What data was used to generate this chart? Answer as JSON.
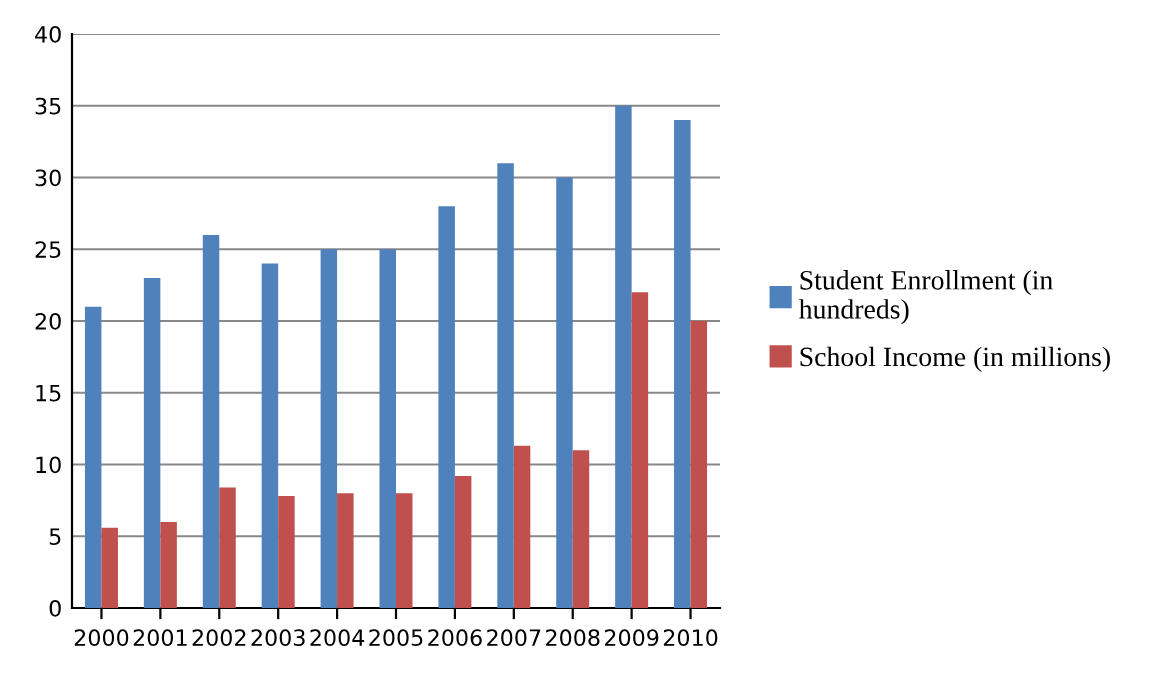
{
  "chart_data": {
    "type": "bar",
    "categories": [
      "2000",
      "2001",
      "2002",
      "2003",
      "2004",
      "2005",
      "2006",
      "2007",
      "2008",
      "2009",
      "2010"
    ],
    "series": [
      {
        "name": "Student Enrollment (in\nhundreds)",
        "color": "#4f81bd",
        "values": [
          21,
          23,
          26,
          24,
          25,
          25,
          28,
          31,
          30,
          35,
          34
        ]
      },
      {
        "name": "School Income (in millions)",
        "color": "#c0504d",
        "values": [
          5.6,
          6,
          8.4,
          7.8,
          8,
          8,
          9.2,
          11.3,
          11,
          22,
          20
        ]
      }
    ],
    "ylim": [
      0,
      40
    ],
    "yticks": [
      0,
      5,
      10,
      15,
      20,
      25,
      30,
      35,
      40
    ],
    "grid": "y",
    "legend": "right"
  }
}
